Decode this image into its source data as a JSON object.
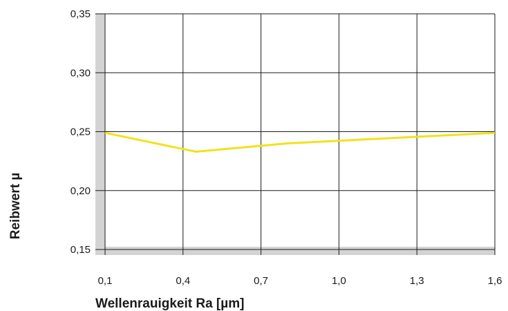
{
  "chart_data": {
    "type": "line",
    "title": "",
    "xlabel": "Wellenrauigkeit Ra [µm]",
    "ylabel": "Reibwert µ",
    "x_ticks": [
      "0,1",
      "0,4",
      "0,7",
      "1,0",
      "1,3",
      "1,6"
    ],
    "y_ticks": [
      "0,15",
      "0,20",
      "0,25",
      "0,30",
      "0,35"
    ],
    "xlim": [
      0.1,
      1.6
    ],
    "ylim": [
      0.15,
      0.35
    ],
    "grid": true,
    "series": [
      {
        "x": [
          0.1,
          0.45,
          0.8,
          1.6
        ],
        "y": [
          0.249,
          0.233,
          0.24,
          0.249
        ]
      }
    ],
    "colors": {
      "series": "#f2e21a",
      "grid": "#1a1a1a",
      "axis_band": "#d3d3d3"
    }
  }
}
